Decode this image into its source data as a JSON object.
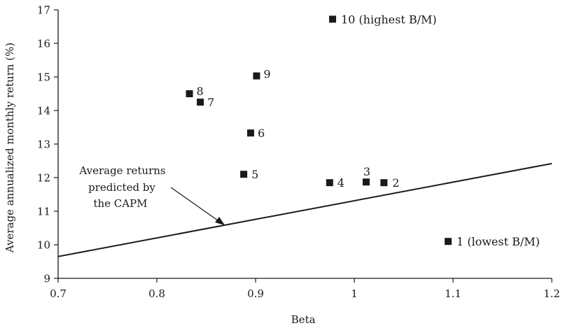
{
  "chart_data": {
    "type": "scatter",
    "xlabel": "Beta",
    "ylabel": "Average annualized monthly return (%)",
    "xlim": [
      0.7,
      1.2
    ],
    "ylim": [
      9,
      17
    ],
    "xticks": [
      0.7,
      0.8,
      0.9,
      1.0,
      1.1,
      1.2
    ],
    "xtick_labels": [
      "0.7",
      "0.8",
      "0.9",
      "1",
      "1.1",
      "1.2"
    ],
    "yticks": [
      9,
      10,
      11,
      12,
      13,
      14,
      15,
      16,
      17
    ],
    "ytick_labels": [
      "9",
      "10",
      "11",
      "12",
      "13",
      "14",
      "15",
      "16",
      "17"
    ],
    "grid": false,
    "points": [
      {
        "x": 1.095,
        "y": 10.1,
        "label": "1 (lowest B/M)"
      },
      {
        "x": 1.03,
        "y": 11.85,
        "label": "2"
      },
      {
        "x": 1.012,
        "y": 11.87,
        "label": "3"
      },
      {
        "x": 0.975,
        "y": 11.85,
        "label": "4"
      },
      {
        "x": 0.888,
        "y": 12.1,
        "label": "5"
      },
      {
        "x": 0.895,
        "y": 13.33,
        "label": "6"
      },
      {
        "x": 0.844,
        "y": 14.25,
        "label": "7"
      },
      {
        "x": 0.833,
        "y": 14.5,
        "label": "8"
      },
      {
        "x": 0.901,
        "y": 15.03,
        "label": "9"
      },
      {
        "x": 0.978,
        "y": 16.72,
        "label": "10 (highest B/M)"
      }
    ],
    "line": {
      "x": [
        0.7,
        1.2
      ],
      "y": [
        9.65,
        12.42
      ]
    },
    "annotation": {
      "lines": [
        "Average returns",
        "predicted by",
        "the CAPM"
      ]
    }
  }
}
